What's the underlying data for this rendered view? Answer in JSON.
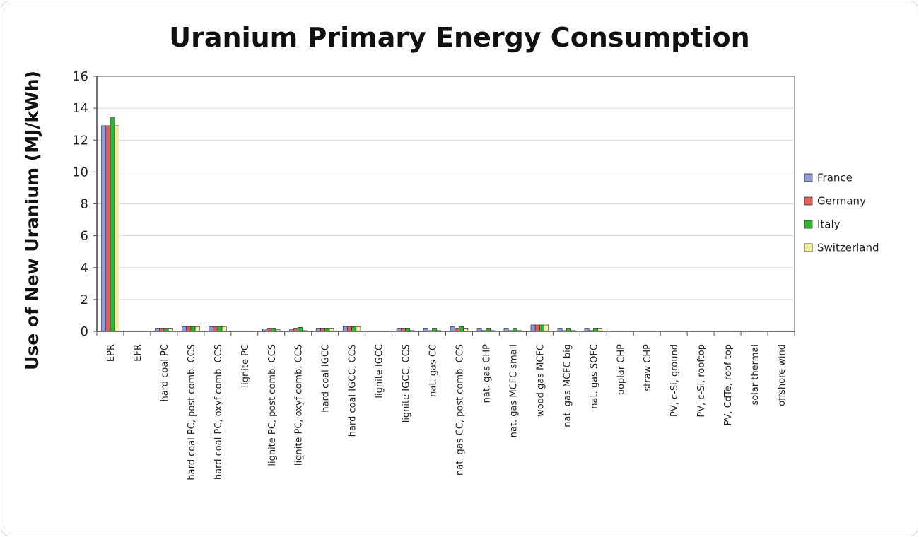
{
  "chart_data": {
    "type": "bar",
    "title": "Uranium Primary Energy Consumption",
    "xlabel": "",
    "ylabel": "Use of New Uranium (MJ/kWh)",
    "ylim": [
      0,
      16
    ],
    "yticks": [
      "0",
      "2",
      "4",
      "6",
      "8",
      "10",
      "12",
      "14",
      "16"
    ],
    "grid": true,
    "legend_position": "right",
    "categories": [
      "EPR",
      "EFR",
      "hard coal PC",
      "hard coal PC, post comb. CCS",
      "hard coal PC, oxyf comb. CCS",
      "lignite PC",
      "lignite PC, post comb. CCS",
      "lignite PC, oxyf comb. CCS",
      "hard coal IGCC",
      "hard coal IGCC, CCS",
      "lignite IGCC",
      "lignite IGCC, CCS",
      "nat. gas CC",
      "nat. gas CC, post comb. CCS",
      "nat. gas CHP",
      "nat. gas MCFC small",
      "wood gas MCFC",
      "nat. gas MCFC big",
      "nat. gas SOFC",
      "poplar CHP",
      "straw CHP",
      "PV, c-Si, ground",
      "PV, c-Si, rooftop",
      "PV, CdTe, roof top",
      "solar thermal",
      "offshore wind"
    ],
    "series": [
      {
        "name": "France",
        "color": "#8f9bdc",
        "values": [
          12.9,
          0,
          0.2,
          0.3,
          0.3,
          0,
          0.15,
          0.1,
          0.2,
          0.3,
          0,
          0.2,
          0.2,
          0.3,
          0.2,
          0.2,
          0.4,
          0.2,
          0.2,
          0,
          0,
          0,
          0,
          0,
          0,
          0
        ]
      },
      {
        "name": "Germany",
        "color": "#e06060",
        "values": [
          12.9,
          0,
          0.2,
          0.3,
          0.3,
          0,
          0.2,
          0.2,
          0.2,
          0.3,
          0,
          0.2,
          0.05,
          0.2,
          0.05,
          0.05,
          0.4,
          0.05,
          0.05,
          0,
          0,
          0,
          0,
          0,
          0,
          0
        ]
      },
      {
        "name": "Italy",
        "color": "#2fb52f",
        "values": [
          13.4,
          0,
          0.2,
          0.3,
          0.3,
          0,
          0.2,
          0.25,
          0.2,
          0.3,
          0,
          0.2,
          0.2,
          0.3,
          0.2,
          0.2,
          0.4,
          0.2,
          0.2,
          0,
          0,
          0,
          0,
          0,
          0,
          0
        ]
      },
      {
        "name": "Switzerland",
        "color": "#f2f09a",
        "values": [
          12.9,
          0,
          0.2,
          0.3,
          0.3,
          0,
          0.1,
          0.05,
          0.2,
          0.3,
          0,
          0.05,
          0.05,
          0.2,
          0.05,
          0.05,
          0.4,
          0.05,
          0.2,
          0,
          0,
          0,
          0,
          0,
          0,
          0
        ]
      }
    ]
  }
}
